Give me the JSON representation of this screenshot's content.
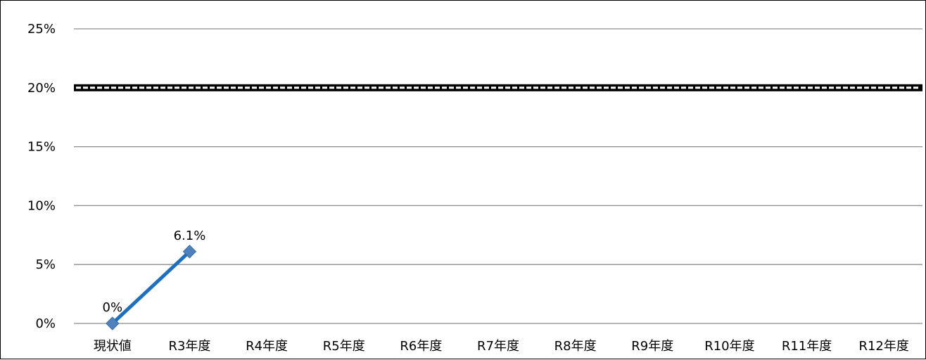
{
  "chart_data": {
    "type": "line",
    "categories": [
      "現状値",
      "R3年度",
      "R4年度",
      "R5年度",
      "R6年度",
      "R7年度",
      "R8年度",
      "R9年度",
      "R10年度",
      "R11年度",
      "R12年度"
    ],
    "series": [
      {
        "values": [
          0,
          6.1,
          null,
          null,
          null,
          null,
          null,
          null,
          null,
          null,
          null
        ],
        "data_labels": [
          "0%",
          "6.1%"
        ],
        "color": "#1f6fbf",
        "marker_color": "#4f81bd",
        "marker": "diamond"
      }
    ],
    "target_line": {
      "value": 20,
      "style": "hatched"
    },
    "y_ticks": [
      {
        "value": 0,
        "label": "0%"
      },
      {
        "value": 5,
        "label": "5%"
      },
      {
        "value": 10,
        "label": "10%"
      },
      {
        "value": 15,
        "label": "15%"
      },
      {
        "value": 20,
        "label": "20%"
      },
      {
        "value": 25,
        "label": "25%"
      }
    ],
    "ylim": [
      0,
      25
    ],
    "grid": true,
    "title": "",
    "xlabel": "",
    "ylabel": ""
  }
}
